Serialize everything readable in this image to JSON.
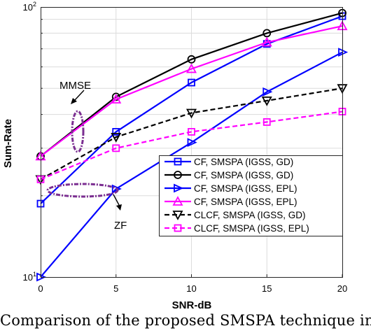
{
  "chart_data": {
    "type": "line",
    "xlabel": "SNR-dB",
    "ylabel": "Sum-Rate",
    "x": [
      0,
      5,
      10,
      15,
      20
    ],
    "xlim": [
      0,
      20
    ],
    "ylim": [
      10,
      100
    ],
    "yscale": "log",
    "grid": true,
    "legend_position": "bottom-right",
    "x_ticks": [
      "0",
      "5",
      "10",
      "15",
      "20"
    ],
    "y_ticks": [
      {
        "base": "10",
        "exp": "1"
      },
      {
        "base": "10",
        "exp": "2"
      }
    ],
    "series": [
      {
        "name": "CF, SMSPA (IGSS, GD)",
        "values": [
          18.7,
          34.5,
          52.5,
          73.0,
          92.5
        ],
        "color": "#0000ff",
        "dash": "solid",
        "marker": "square"
      },
      {
        "name": "CF, SMSPA (IGSS, GD)",
        "values": [
          28.0,
          46.5,
          64.0,
          80.0,
          95.0
        ],
        "color": "#000000",
        "dash": "solid",
        "marker": "circle"
      },
      {
        "name": "CF, SMSPA (IGSS, EPL)",
        "values": [
          10.0,
          21.2,
          31.5,
          48.5,
          68.0
        ],
        "color": "#0000ff",
        "dash": "solid",
        "marker": "triangle-right"
      },
      {
        "name": "CF, SMSPA (IGSS, EPL)",
        "values": [
          28.0,
          45.5,
          59.0,
          74.0,
          85.0
        ],
        "color": "#ff00ff",
        "dash": "solid",
        "marker": "triangle-up"
      },
      {
        "name": "CLCF, SMSPA (IGSS, GD)",
        "values": [
          23.0,
          33.0,
          40.5,
          45.0,
          50.0
        ],
        "color": "#000000",
        "dash": "dashed",
        "marker": "triangle-down"
      },
      {
        "name": "CLCF, SMSPA (IGSS, EPL)",
        "values": [
          23.0,
          30.0,
          34.5,
          37.5,
          41.0
        ],
        "color": "#ff00ff",
        "dash": "dashed",
        "marker": "square"
      }
    ],
    "annotations": [
      {
        "text": "MMSE"
      },
      {
        "text": "ZF"
      }
    ]
  },
  "caption": "Comparison of the proposed SMSPA technique in"
}
